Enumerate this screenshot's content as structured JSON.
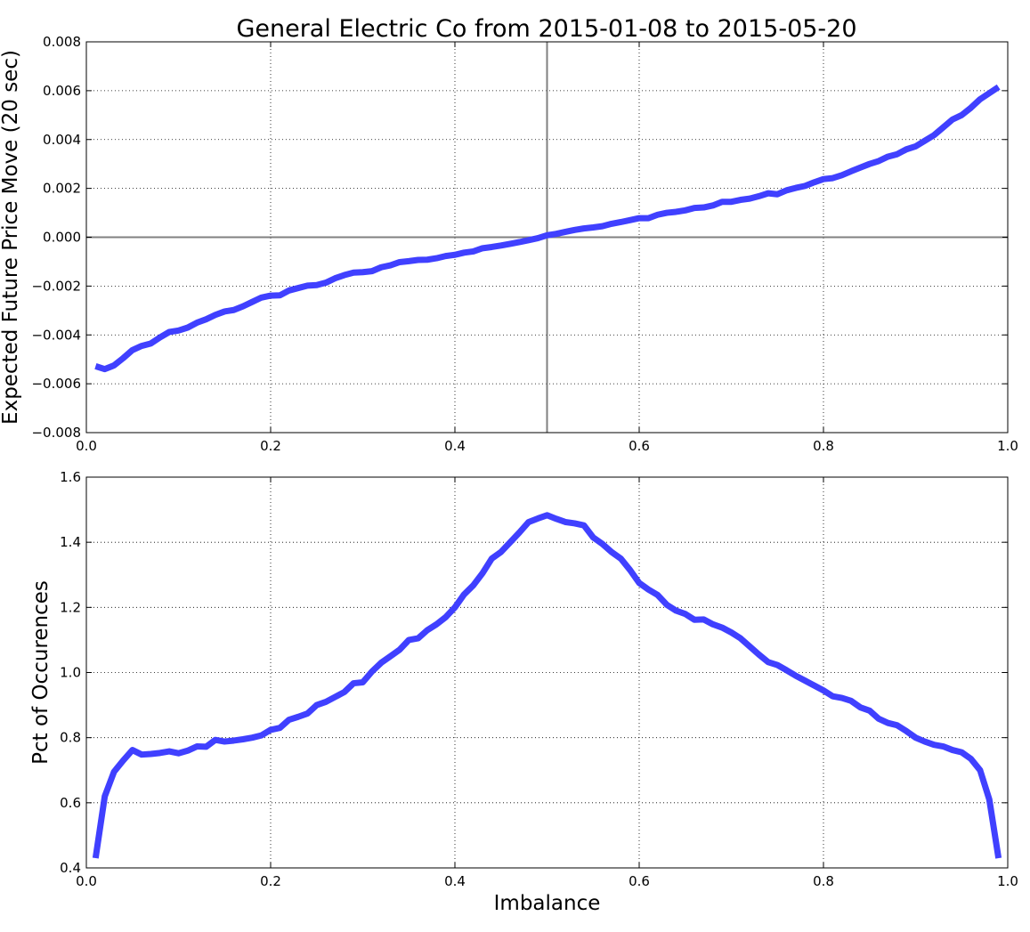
{
  "figure": {
    "title": "General Electric Co from 2015-01-08 to 2015-05-20"
  },
  "chart_data": [
    {
      "type": "line",
      "title": "General Electric Co from 2015-01-08 to 2015-05-20",
      "xlabel": "",
      "ylabel": "Expected Future Price Move (20 sec)",
      "xlim": [
        0.0,
        1.0
      ],
      "ylim": [
        -0.008,
        0.008
      ],
      "xticks": [
        0.0,
        0.2,
        0.4,
        0.6,
        0.8,
        1.0
      ],
      "xtick_labels": [
        "0.0",
        "0.2",
        "0.4",
        "0.6",
        "0.8",
        "1.0"
      ],
      "yticks": [
        -0.008,
        -0.006,
        -0.004,
        -0.002,
        0.0,
        0.002,
        0.004,
        0.006,
        0.008
      ],
      "ytick_labels": [
        "−0.008",
        "−0.006",
        "−0.004",
        "−0.002",
        "0.000",
        "0.002",
        "0.004",
        "0.006",
        "0.008"
      ],
      "grid": true,
      "reference_lines": {
        "horizontal_y": 0.0,
        "vertical_x": 0.5,
        "color": "#808080"
      },
      "series_color": "#4040ff",
      "series": [
        {
          "x": [
            0.01,
            0.02,
            0.03,
            0.04,
            0.05,
            0.06,
            0.07,
            0.08,
            0.09,
            0.1,
            0.11,
            0.12,
            0.13,
            0.14,
            0.15,
            0.16,
            0.17,
            0.18,
            0.19,
            0.2,
            0.21,
            0.22,
            0.23,
            0.24,
            0.25,
            0.26,
            0.27,
            0.28,
            0.29,
            0.3,
            0.31,
            0.32,
            0.33,
            0.34,
            0.35,
            0.36,
            0.37,
            0.38,
            0.39,
            0.4,
            0.41,
            0.42,
            0.43,
            0.44,
            0.45,
            0.46,
            0.47,
            0.48,
            0.49,
            0.5,
            0.51,
            0.52,
            0.53,
            0.54,
            0.55,
            0.56,
            0.57,
            0.58,
            0.59,
            0.6,
            0.61,
            0.62,
            0.63,
            0.64,
            0.65,
            0.66,
            0.67,
            0.68,
            0.69,
            0.7,
            0.71,
            0.72,
            0.73,
            0.74,
            0.75,
            0.76,
            0.77,
            0.78,
            0.79,
            0.8,
            0.81,
            0.82,
            0.83,
            0.84,
            0.85,
            0.86,
            0.87,
            0.88,
            0.89,
            0.9,
            0.91,
            0.92,
            0.93,
            0.94,
            0.95,
            0.96,
            0.97,
            0.98,
            0.99
          ],
          "values": [
            -0.00528,
            -0.0054,
            -0.00525,
            -0.00495,
            -0.00462,
            -0.00445,
            -0.00435,
            -0.0041,
            -0.00388,
            -0.00382,
            -0.0037,
            -0.0035,
            -0.00336,
            -0.00318,
            -0.00304,
            -0.00298,
            -0.00283,
            -0.00265,
            -0.00247,
            -0.00239,
            -0.00238,
            -0.00218,
            -0.00208,
            -0.00198,
            -0.00196,
            -0.00186,
            -0.00168,
            -0.00155,
            -0.00145,
            -0.00143,
            -0.00139,
            -0.00123,
            -0.00115,
            -0.00102,
            -0.00098,
            -0.00093,
            -0.00092,
            -0.00086,
            -0.00077,
            -0.00072,
            -0.00063,
            -0.00058,
            -0.00045,
            -0.0004,
            -0.00034,
            -0.00027,
            -0.0002,
            -0.00012,
            -4e-05,
            8e-05,
            0.00014,
            0.00022,
            0.0003,
            0.00036,
            0.0004,
            0.00045,
            0.00055,
            0.00062,
            0.0007,
            0.00078,
            0.00078,
            0.00092,
            0.001,
            0.00104,
            0.0011,
            0.0012,
            0.00122,
            0.0013,
            0.00145,
            0.00145,
            0.00153,
            0.00158,
            0.00168,
            0.0018,
            0.00176,
            0.00192,
            0.00202,
            0.0021,
            0.00225,
            0.00238,
            0.00242,
            0.00254,
            0.0027,
            0.00285,
            0.003,
            0.00312,
            0.0033,
            0.0034,
            0.0036,
            0.00372,
            0.00395,
            0.00418,
            0.0045,
            0.00482,
            0.005,
            0.0053,
            0.00565,
            0.0059,
            0.00615
          ]
        }
      ]
    },
    {
      "type": "line",
      "title": "",
      "xlabel": "Imbalance",
      "ylabel": "Pct of Occurences",
      "xlim": [
        0.0,
        1.0
      ],
      "ylim": [
        0.4,
        1.6
      ],
      "xticks": [
        0.0,
        0.2,
        0.4,
        0.6,
        0.8,
        1.0
      ],
      "xtick_labels": [
        "0.0",
        "0.2",
        "0.4",
        "0.6",
        "0.8",
        "1.0"
      ],
      "yticks": [
        0.4,
        0.6,
        0.8,
        1.0,
        1.2,
        1.4,
        1.6
      ],
      "ytick_labels": [
        "0.4",
        "0.6",
        "0.8",
        "1.0",
        "1.2",
        "1.4",
        "1.6"
      ],
      "grid": true,
      "series_color": "#4040ff",
      "series": [
        {
          "x": [
            0.01,
            0.02,
            0.03,
            0.04,
            0.05,
            0.06,
            0.07,
            0.08,
            0.09,
            0.1,
            0.11,
            0.12,
            0.13,
            0.14,
            0.15,
            0.16,
            0.17,
            0.18,
            0.19,
            0.2,
            0.21,
            0.22,
            0.23,
            0.24,
            0.25,
            0.26,
            0.27,
            0.28,
            0.29,
            0.3,
            0.31,
            0.32,
            0.33,
            0.34,
            0.35,
            0.36,
            0.37,
            0.38,
            0.39,
            0.4,
            0.41,
            0.42,
            0.43,
            0.44,
            0.45,
            0.46,
            0.47,
            0.48,
            0.49,
            0.5,
            0.51,
            0.52,
            0.53,
            0.54,
            0.55,
            0.56,
            0.57,
            0.58,
            0.59,
            0.6,
            0.61,
            0.62,
            0.63,
            0.64,
            0.65,
            0.66,
            0.67,
            0.68,
            0.69,
            0.7,
            0.71,
            0.72,
            0.73,
            0.74,
            0.75,
            0.76,
            0.77,
            0.78,
            0.79,
            0.8,
            0.81,
            0.82,
            0.83,
            0.84,
            0.85,
            0.86,
            0.87,
            0.88,
            0.89,
            0.9,
            0.91,
            0.92,
            0.93,
            0.94,
            0.95,
            0.96,
            0.97,
            0.98,
            0.99
          ],
          "values": [
            0.43,
            0.62,
            0.695,
            0.73,
            0.762,
            0.748,
            0.75,
            0.753,
            0.758,
            0.752,
            0.76,
            0.773,
            0.772,
            0.793,
            0.788,
            0.791,
            0.795,
            0.8,
            0.807,
            0.824,
            0.83,
            0.855,
            0.864,
            0.874,
            0.9,
            0.91,
            0.925,
            0.94,
            0.967,
            0.97,
            1.003,
            1.03,
            1.05,
            1.07,
            1.1,
            1.105,
            1.13,
            1.148,
            1.17,
            1.2,
            1.24,
            1.268,
            1.305,
            1.35,
            1.37,
            1.4,
            1.43,
            1.462,
            1.473,
            1.483,
            1.472,
            1.462,
            1.458,
            1.452,
            1.415,
            1.395,
            1.37,
            1.35,
            1.315,
            1.275,
            1.255,
            1.238,
            1.208,
            1.19,
            1.18,
            1.162,
            1.163,
            1.148,
            1.138,
            1.123,
            1.105,
            1.08,
            1.055,
            1.032,
            1.023,
            1.007,
            0.99,
            0.975,
            0.96,
            0.945,
            0.927,
            0.922,
            0.913,
            0.893,
            0.883,
            0.858,
            0.845,
            0.838,
            0.82,
            0.8,
            0.788,
            0.778,
            0.773,
            0.762,
            0.755,
            0.735,
            0.7,
            0.61,
            0.43
          ]
        }
      ]
    }
  ]
}
